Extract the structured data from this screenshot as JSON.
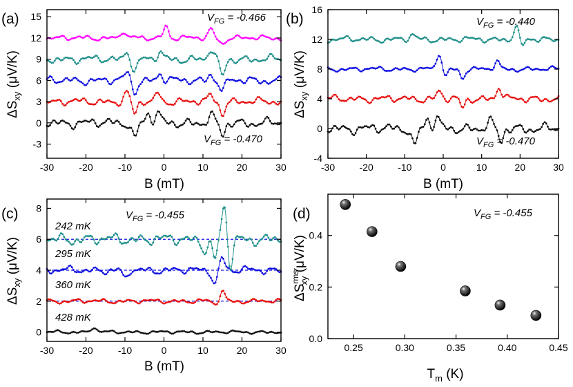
{
  "colors": {
    "magenta": "#ff00ff",
    "teal": "#1f8f8a",
    "blue": "#1010e0",
    "red": "#e81010",
    "black": "#111111",
    "dashed": "#1010e0"
  },
  "chart_data": [
    {
      "panel": "(a)",
      "type": "line",
      "xlabel": "B (mT)",
      "ylabel": "ΔSxy (μV/K)",
      "xlim": [
        -30,
        30
      ],
      "ylim": [
        -5,
        16
      ],
      "xticks": [
        -30,
        -20,
        -10,
        0,
        10,
        20,
        30
      ],
      "yticks": [
        -3,
        0,
        3,
        6,
        9,
        12,
        15
      ],
      "annotations": [
        "V_FG = -0.466",
        "V_FG = -0.470"
      ],
      "series": [
        {
          "color": "black",
          "offset": 0,
          "seed": 1,
          "amp": 0.85,
          "features": [
            [
              -7.5,
              -2.2
            ],
            [
              -4,
              1.3
            ],
            [
              -1.5,
              1.2
            ],
            [
              15,
              -1.8
            ],
            [
              12,
              1.0
            ]
          ]
        },
        {
          "color": "red",
          "offset": 3,
          "seed": 2,
          "amp": 0.65,
          "features": [
            [
              -7.5,
              -1.8
            ],
            [
              -9.5,
              1.3
            ],
            [
              -1.5,
              1.3
            ],
            [
              15,
              -1.6
            ],
            [
              12,
              0.9
            ]
          ]
        },
        {
          "color": "blue",
          "offset": 6,
          "seed": 3,
          "amp": 0.7,
          "features": [
            [
              -7.5,
              -1.6
            ],
            [
              -9.5,
              1.1
            ],
            [
              -1,
              1.0
            ],
            [
              15,
              -1.6
            ],
            [
              12,
              0.9
            ]
          ]
        },
        {
          "color": "teal",
          "offset": 9,
          "seed": 4,
          "amp": 0.7,
          "features": [
            [
              -7.5,
              -1.7
            ],
            [
              -9.5,
              1.2
            ],
            [
              15,
              -2.5
            ],
            [
              12,
              1.4
            ],
            [
              -1,
              1.0
            ]
          ]
        },
        {
          "color": "magenta",
          "offset": 12,
          "seed": 5,
          "amp": 0.45,
          "features": [
            [
              0.5,
              1.7
            ],
            [
              12,
              1.2
            ],
            [
              -10.5,
              1.0
            ],
            [
              15,
              -0.8
            ]
          ]
        }
      ]
    },
    {
      "panel": "(b)",
      "type": "line",
      "xlabel": "B (mT)",
      "ylabel": "ΔSxy (μV/K)",
      "xlim": [
        -30,
        30
      ],
      "ylim": [
        -4,
        16
      ],
      "xticks": [
        -30,
        -20,
        -10,
        0,
        10,
        20,
        30
      ],
      "yticks": [
        -4,
        0,
        4,
        8,
        12,
        16
      ],
      "annotations": [
        "V_FG = -0.440",
        "V_FG = -0.470"
      ],
      "series": [
        {
          "color": "black",
          "offset": 0,
          "seed": 1,
          "amp": 0.85,
          "features": [
            [
              -7.5,
              -2.4
            ],
            [
              -4,
              1.3
            ],
            [
              -1.5,
              1.2
            ],
            [
              15,
              -1.8
            ],
            [
              12,
              1.0
            ]
          ]
        },
        {
          "color": "red",
          "offset": 4,
          "seed": 6,
          "amp": 0.6,
          "features": [
            [
              14.5,
              1.6
            ],
            [
              5,
              -1.2
            ],
            [
              -1,
              1.0
            ]
          ]
        },
        {
          "color": "blue",
          "offset": 8,
          "seed": 7,
          "amp": 0.4,
          "features": [
            [
              -1,
              2.2
            ],
            [
              0.5,
              -1.0
            ],
            [
              5,
              -1.1
            ],
            [
              14,
              1.0
            ]
          ]
        },
        {
          "color": "teal",
          "offset": 12,
          "seed": 8,
          "amp": 0.5,
          "features": [
            [
              19,
              1.8
            ],
            [
              20.5,
              -1.0
            ],
            [
              -8,
              0.6
            ]
          ]
        }
      ]
    },
    {
      "panel": "(c)",
      "type": "line",
      "xlabel": "B (mT)",
      "ylabel": "ΔSxy (μV/K)",
      "xlim": [
        -30,
        30
      ],
      "ylim": [
        -0.6,
        8.6
      ],
      "xticks": [
        -30,
        -20,
        -10,
        0,
        10,
        20,
        30
      ],
      "yticks": [
        0,
        2,
        4,
        6,
        8
      ],
      "annotations": [
        "V_FG = -0.455"
      ],
      "series": [
        {
          "name": "428 mK",
          "color": "black",
          "offset": 0,
          "seed": 9,
          "amp": 0.13,
          "features": [
            [
              -18,
              0.35
            ]
          ]
        },
        {
          "name": "360 mK",
          "color": "red",
          "offset": 2,
          "seed": 10,
          "amp": 0.18,
          "features": [
            [
              15,
              0.65
            ],
            [
              13,
              -0.2
            ]
          ]
        },
        {
          "name": "295 mK",
          "color": "blue",
          "offset": 4,
          "seed": 11,
          "amp": 0.3,
          "features": [
            [
              13,
              -0.8
            ],
            [
              15,
              0.8
            ],
            [
              -10,
              -0.6
            ]
          ]
        },
        {
          "name": "242 mK",
          "color": "teal",
          "offset": 6,
          "seed": 12,
          "amp": 0.45,
          "features": [
            [
              15.5,
              2.2
            ],
            [
              13,
              -1.3
            ],
            [
              17,
              -1.8
            ],
            [
              10.5,
              -0.7
            ]
          ]
        }
      ],
      "dashed_levels": [
        2,
        4,
        6
      ]
    },
    {
      "panel": "(d)",
      "type": "scatter",
      "xlabel": "Tm (K)",
      "ylabel": "ΔSxy rms (μV/K)",
      "xlim": [
        0.225,
        0.45
      ],
      "ylim": [
        0,
        0.56
      ],
      "xticks": [
        0.25,
        0.3,
        0.35,
        0.4,
        0.45
      ],
      "xtick_labels": [
        "0.25",
        "0.30",
        "0.35",
        "0.40",
        "0.45"
      ],
      "yticks": [
        0,
        0.2,
        0.4
      ],
      "ytick_labels": [
        "0.0",
        "0.2",
        "0.4"
      ],
      "annotations": [
        "V_FG = -0.455"
      ],
      "x": [
        0.242,
        0.268,
        0.296,
        0.359,
        0.393,
        0.428
      ],
      "y": [
        0.52,
        0.415,
        0.28,
        0.185,
        0.13,
        0.09
      ]
    }
  ],
  "text": {
    "a_label": "(a)",
    "b_label": "(b)",
    "c_label": "(c)",
    "d_label": "(d)",
    "xlabel_B": "B (mT)",
    "ylabel_delta": "ΔS",
    "ylabel_sub": "xy",
    "ylabel_unit": " (μV/K)",
    "d_ylabel_sup": "rms",
    "d_xlabel_main": "T",
    "d_xlabel_sub": "m",
    "d_xlabel_unit": " (K)",
    "vfg_V": "V",
    "vfg_sub": "FG",
    "vfg_a_top": " = -0.466",
    "vfg_a_bottom": " = -0.470",
    "vfg_b_top": " = -0.440",
    "vfg_b_bottom": " = -0.470",
    "vfg_c": " = -0.455",
    "vfg_d": " = -0.455",
    "temp_242": "242 mK",
    "temp_295": "295 mK",
    "temp_360": "360 mK",
    "temp_428": "428 mK"
  }
}
